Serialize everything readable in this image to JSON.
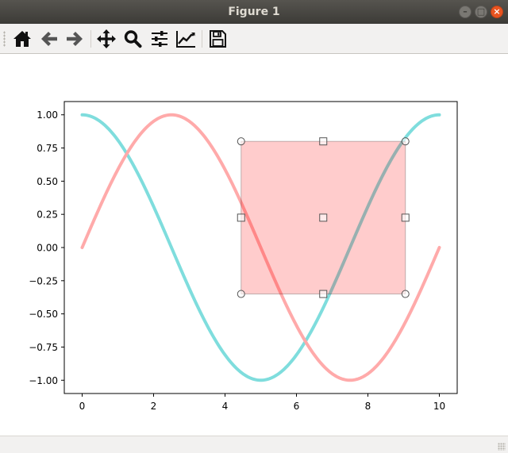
{
  "window": {
    "title": "Figure 1",
    "controls": {
      "minimize_glyph": "–",
      "maximize_glyph": "□",
      "close_glyph": "×"
    }
  },
  "toolbar": {
    "buttons": [
      {
        "name": "home",
        "icon": "home-icon"
      },
      {
        "name": "back",
        "icon": "arrow-left-icon"
      },
      {
        "name": "forward",
        "icon": "arrow-right-icon"
      },
      {
        "name": "pan",
        "icon": "move-icon"
      },
      {
        "name": "zoom",
        "icon": "magnifier-icon"
      },
      {
        "name": "subplots",
        "icon": "sliders-icon"
      },
      {
        "name": "edit-axes",
        "icon": "line-chart-icon"
      },
      {
        "name": "save",
        "icon": "floppy-icon"
      }
    ]
  },
  "colors": {
    "cos_line": "#7fdddd",
    "sin_line": "#ffaaaa",
    "selector_fill": "#ff0000",
    "selector_edge": "#000000",
    "handle_edge": "#555555"
  },
  "chart_data": {
    "type": "line",
    "title": "",
    "xlabel": "",
    "ylabel": "",
    "xlim": [
      -0.5,
      10.5
    ],
    "ylim": [
      -1.1,
      1.1
    ],
    "grid": false,
    "legend": "none",
    "xticks": [
      0,
      2,
      4,
      6,
      8,
      10
    ],
    "yticks": [
      1.0,
      0.75,
      0.5,
      0.25,
      0.0,
      -0.25,
      -0.5,
      -0.75,
      -1.0
    ],
    "xtick_labels": [
      "0",
      "2",
      "4",
      "6",
      "8",
      "10"
    ],
    "ytick_labels": [
      "1.00",
      "0.75",
      "0.50",
      "0.25",
      "0.00",
      "−0.25",
      "−0.50",
      "−0.75",
      "−1.00"
    ],
    "series": [
      {
        "function": "cos",
        "x_range": [
          0,
          10
        ],
        "period": 10,
        "color": "#7fdddd"
      },
      {
        "function": "sin",
        "x_range": [
          0,
          10
        ],
        "period": 10,
        "color": "#ffaaaa"
      }
    ],
    "rectangle_selector": {
      "x": [
        4.45,
        9.05
      ],
      "y": [
        -0.35,
        0.8
      ],
      "corner_handle": "circle",
      "edge_handle": "square"
    }
  }
}
